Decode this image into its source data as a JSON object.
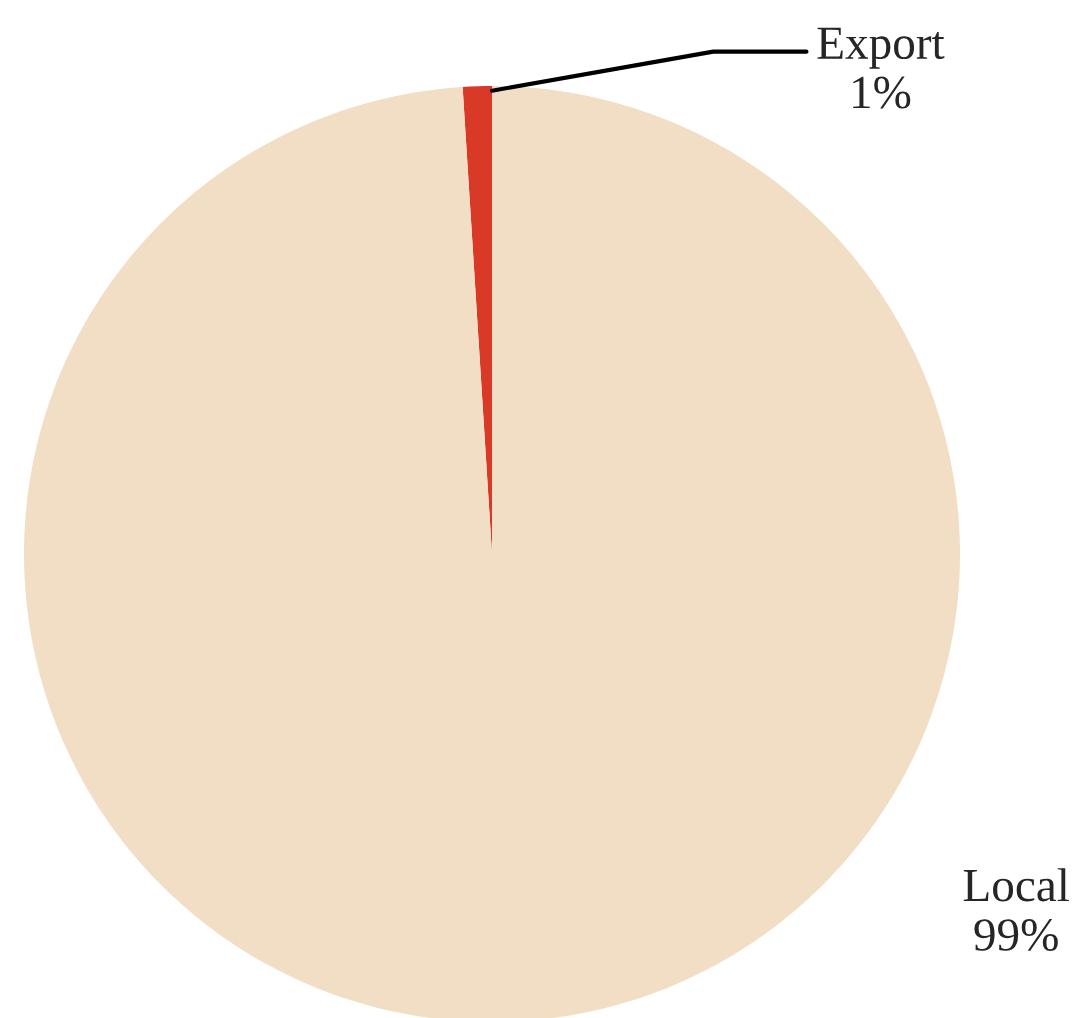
{
  "chart_data": {
    "type": "pie",
    "categories": [
      "Export",
      "Local"
    ],
    "values": [
      1,
      99
    ],
    "value_labels": [
      "1%",
      "99%"
    ],
    "colors": [
      "#d93a27",
      "#f2dec4"
    ]
  }
}
